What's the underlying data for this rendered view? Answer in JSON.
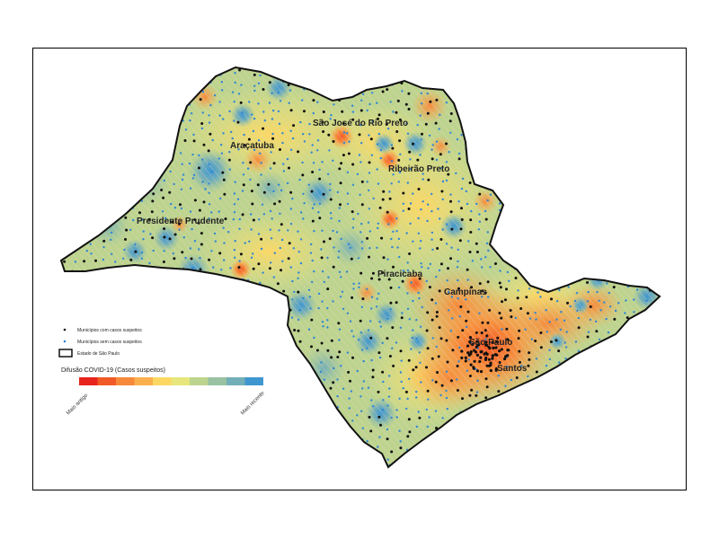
{
  "map": {
    "cities": [
      {
        "key": "sjrp",
        "name": "São José do Rio Preto"
      },
      {
        "key": "aracatuba",
        "name": "Araçatuba"
      },
      {
        "key": "ribeirao",
        "name": "Ribeirão Preto"
      },
      {
        "key": "prudente",
        "name": "Presidente Prudente"
      },
      {
        "key": "piracicaba",
        "name": "Piracicaba"
      },
      {
        "key": "campinas",
        "name": "Campinas"
      },
      {
        "key": "saopaulo",
        "name": "São Paulo"
      },
      {
        "key": "santos",
        "name": "Santos"
      }
    ],
    "legend": {
      "with_cases": "Municípios com casos suspeitos",
      "without_cases": "Municípios sem casos suspeitos",
      "state": "Estado de São Paulo",
      "ramp_title": "Difusão COVID-19 (Casos suspeitos)",
      "ramp_low": "Mais antigo",
      "ramp_high": "Mais recente",
      "ramp_colors": [
        "#e8241e",
        "#f15a26",
        "#f6893a",
        "#fbb04e",
        "#fcd863",
        "#e7e67c",
        "#bdd48f",
        "#98c2a1",
        "#73afb8",
        "#3f97d0"
      ]
    },
    "colors": {
      "outline": "#111111",
      "dot_with_cases": "#111111",
      "dot_without_cases": "#2f86d6",
      "hatch": "#e6b8a8"
    }
  }
}
